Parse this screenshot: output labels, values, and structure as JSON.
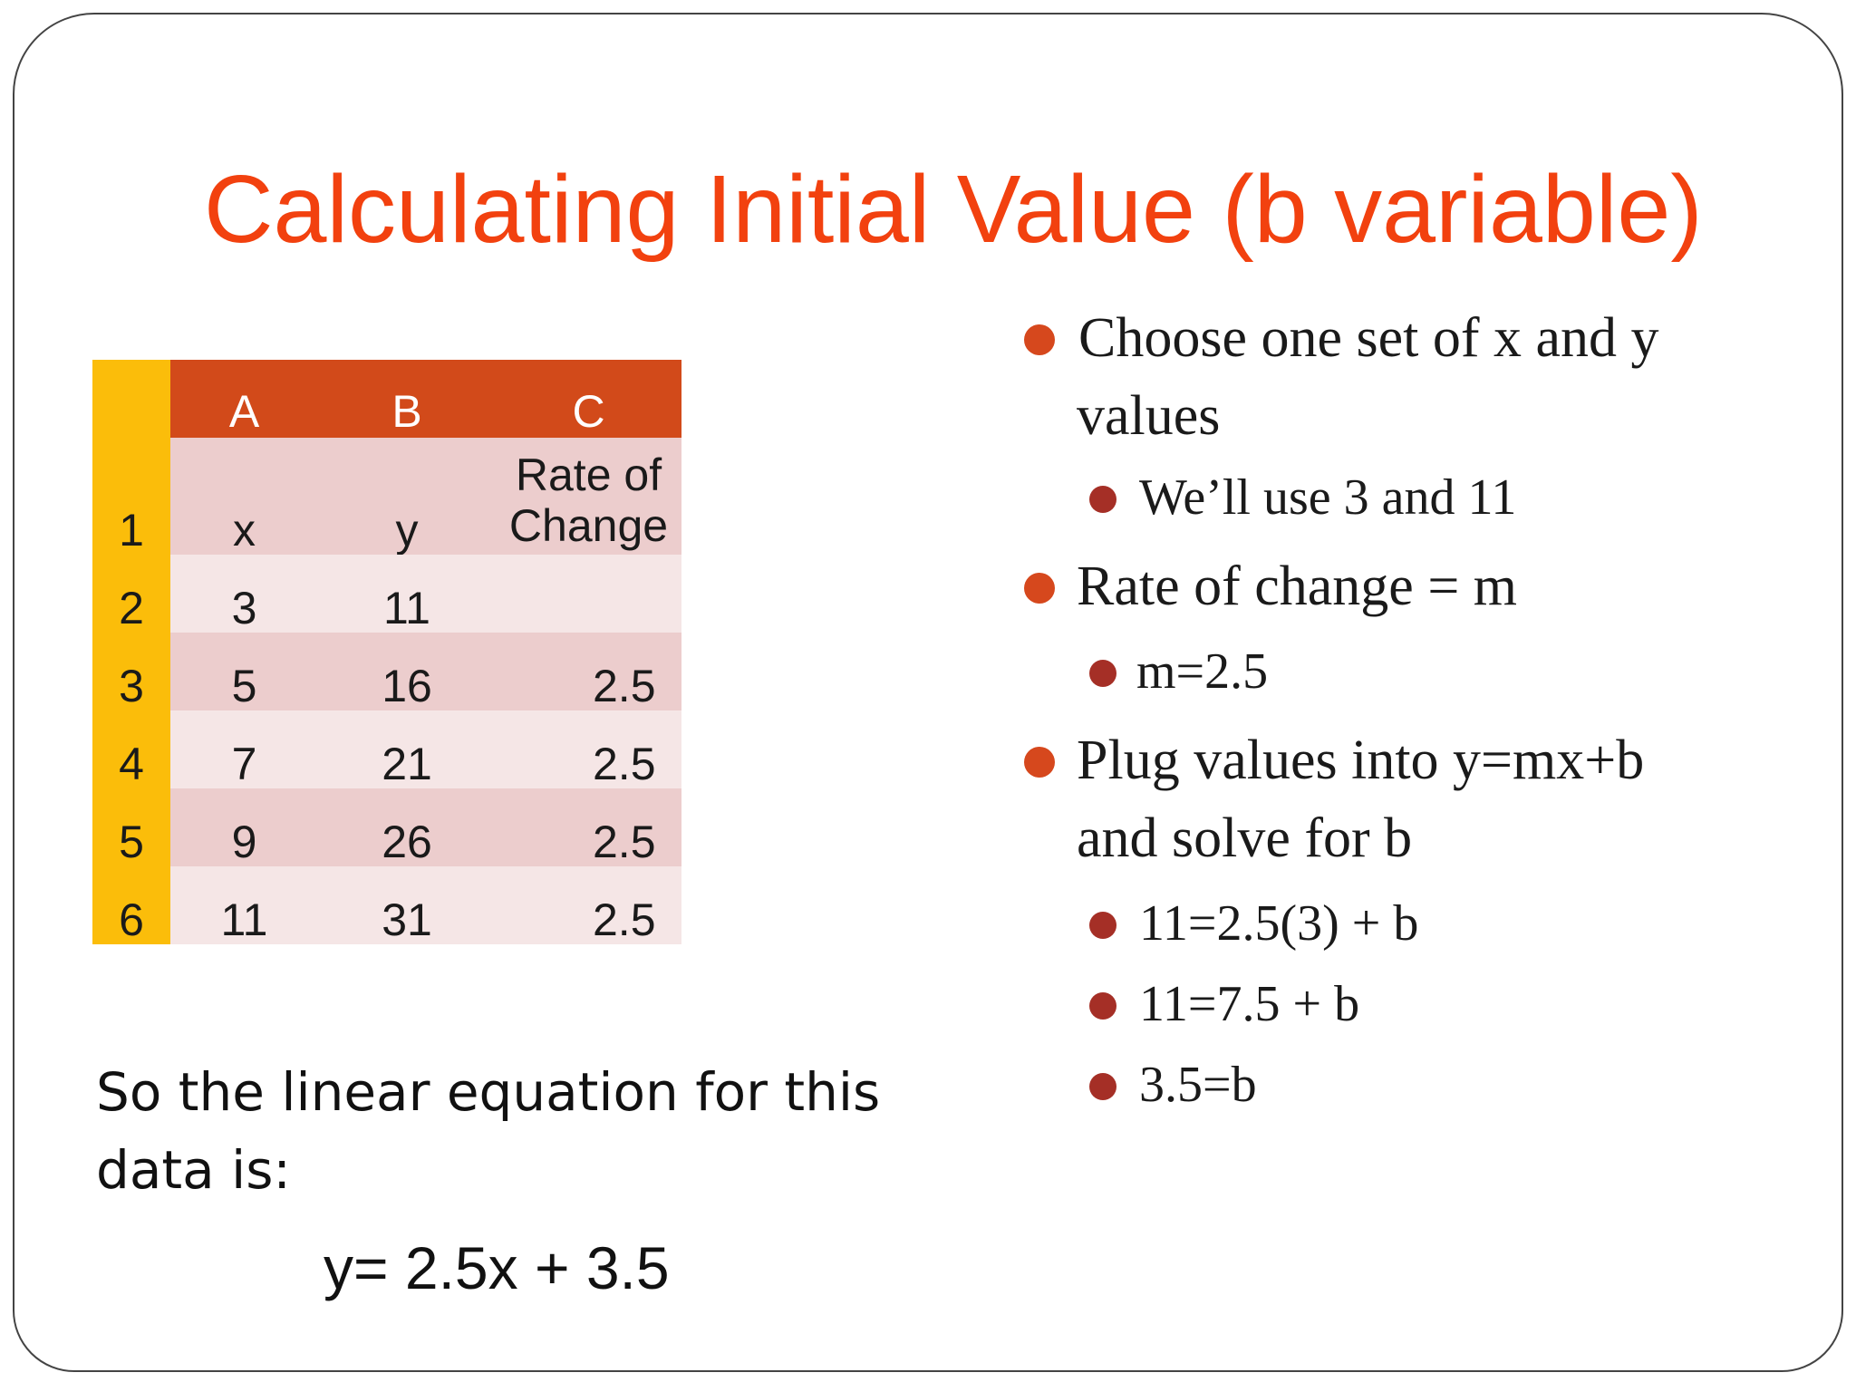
{
  "title": "Calculating Initial Value (b variable)",
  "table": {
    "column_headers": [
      "A",
      "B",
      "C"
    ],
    "rows": [
      {
        "num": "1",
        "a": "x",
        "b": "y",
        "c_line1": "Rate of",
        "c_line2": "Change"
      },
      {
        "num": "2",
        "a": "3",
        "b": "11",
        "c": ""
      },
      {
        "num": "3",
        "a": "5",
        "b": "16",
        "c": "2.5"
      },
      {
        "num": "4",
        "a": "7",
        "b": "21",
        "c": "2.5"
      },
      {
        "num": "5",
        "a": "9",
        "b": "26",
        "c": "2.5"
      },
      {
        "num": "6",
        "a": "11",
        "b": "31",
        "c": "2.5"
      }
    ]
  },
  "bullets": {
    "item1_line1": "Choose one set of x and y",
    "item1_line2": "values",
    "item1_sub1": "We’ll use 3 and 11",
    "item2_line1": "Rate of change = m",
    "item2_sub1": "m=2.5",
    "item3_line1": "Plug values into y=mx+b",
    "item3_line2": "and solve for b",
    "item3_sub1": "11=2.5(3) + b",
    "item3_sub2": "11=7.5 + b",
    "item3_sub3": "3.5=b"
  },
  "summary": {
    "line1": "So the linear equation for this",
    "line2": "data is:"
  },
  "equation": "y= 2.5x + 3.5",
  "colors": {
    "title": "#f2410f",
    "header_fill": "#d24a1a",
    "rownum_fill": "#fbbd0a",
    "row_dark": "#eccdcd",
    "row_light": "#f5e6e6",
    "bullet_level1": "#d6481d",
    "bullet_level2": "#a52f26"
  }
}
